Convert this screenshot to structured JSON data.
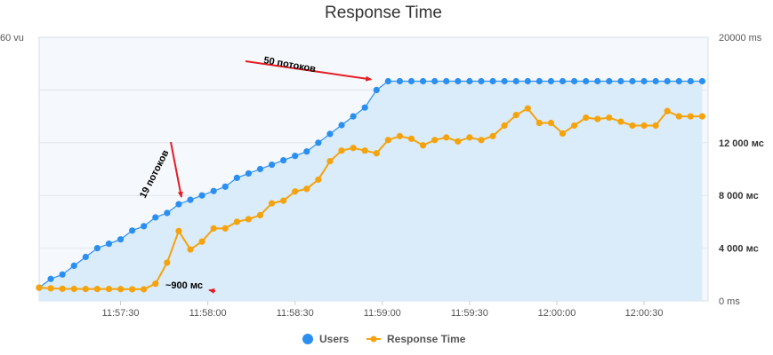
{
  "chart_data": {
    "type": "line",
    "title": "Response Time",
    "xlabel": "",
    "ylabel_left": "",
    "ylabel_right": "",
    "x_ticks": [
      "11:57:30",
      "11:58:00",
      "11:58:30",
      "11:59:00",
      "11:59:30",
      "12:00:00",
      "12:00:30"
    ],
    "x_range": [
      "11:57:02",
      "12:00:52"
    ],
    "y_left": {
      "max_label": "60 vu",
      "range": [
        0,
        60
      ]
    },
    "y_right": {
      "ticks": [
        "0 ms",
        "4 000 мс",
        "8 000 мс",
        "12 000 мс",
        "20000 ms"
      ],
      "range": [
        0,
        20000
      ]
    },
    "grid": true,
    "legend_position": "bottom-center",
    "series": [
      {
        "name": "Users",
        "type": "area",
        "axis": "left",
        "color": "#2b8ff0",
        "fill": "#daebf9",
        "x": [
          "11:57:02",
          "11:57:06",
          "11:57:10",
          "11:57:14",
          "11:57:18",
          "11:57:22",
          "11:57:26",
          "11:57:30",
          "11:57:34",
          "11:57:38",
          "11:57:42",
          "11:57:46",
          "11:57:50",
          "11:57:54",
          "11:57:58",
          "11:58:02",
          "11:58:06",
          "11:58:10",
          "11:58:14",
          "11:58:18",
          "11:58:22",
          "11:58:26",
          "11:58:30",
          "11:58:34",
          "11:58:38",
          "11:58:42",
          "11:58:46",
          "11:58:50",
          "11:58:54",
          "11:58:58",
          "11:59:02",
          "11:59:06",
          "11:59:10",
          "11:59:14",
          "11:59:18",
          "11:59:22",
          "11:59:26",
          "11:59:30",
          "11:59:34",
          "11:59:38",
          "11:59:42",
          "11:59:46",
          "11:59:50",
          "11:59:54",
          "11:59:58",
          "12:00:02",
          "12:00:06",
          "12:00:10",
          "12:00:14",
          "12:00:18",
          "12:00:22",
          "12:00:26",
          "12:00:30",
          "12:00:34",
          "12:00:38",
          "12:00:42",
          "12:00:46",
          "12:00:50"
        ],
        "values": [
          3,
          5,
          6,
          8,
          10,
          12,
          13,
          14,
          16,
          17,
          19,
          20,
          22,
          23,
          24,
          25,
          26,
          28,
          29,
          30,
          31,
          32,
          33,
          34,
          36,
          38,
          40,
          42,
          44,
          48,
          50,
          50,
          50,
          50,
          50,
          50,
          50,
          50,
          50,
          50,
          50,
          50,
          50,
          50,
          50,
          50,
          50,
          50,
          50,
          50,
          50,
          50,
          50,
          50,
          50,
          50,
          50,
          50
        ]
      },
      {
        "name": "Response Time",
        "type": "line",
        "axis": "right",
        "color": "#f5a30c",
        "x": [
          "11:57:02",
          "11:57:06",
          "11:57:10",
          "11:57:14",
          "11:57:18",
          "11:57:22",
          "11:57:26",
          "11:57:30",
          "11:57:34",
          "11:57:38",
          "11:57:42",
          "11:57:46",
          "11:57:50",
          "11:57:54",
          "11:57:58",
          "11:58:02",
          "11:58:06",
          "11:58:10",
          "11:58:14",
          "11:58:18",
          "11:58:22",
          "11:58:26",
          "11:58:30",
          "11:58:34",
          "11:58:38",
          "11:58:42",
          "11:58:46",
          "11:58:50",
          "11:58:54",
          "11:58:58",
          "11:59:02",
          "11:59:06",
          "11:59:10",
          "11:59:14",
          "11:59:18",
          "11:59:22",
          "11:59:26",
          "11:59:30",
          "11:59:34",
          "11:59:38",
          "11:59:42",
          "11:59:46",
          "11:59:50",
          "11:59:54",
          "11:59:58",
          "12:00:02",
          "12:00:06",
          "12:00:10",
          "12:00:14",
          "12:00:18",
          "12:00:22",
          "12:00:26",
          "12:00:30",
          "12:00:34",
          "12:00:38",
          "12:00:42",
          "12:00:46",
          "12:00:50"
        ],
        "values": [
          1000,
          950,
          920,
          910,
          900,
          900,
          900,
          890,
          880,
          880,
          1300,
          2900,
          5300,
          3900,
          4500,
          5500,
          5500,
          6000,
          6200,
          6500,
          7400,
          7600,
          8300,
          8500,
          9200,
          10600,
          11400,
          11600,
          11400,
          11200,
          12200,
          12500,
          12300,
          11800,
          12200,
          12400,
          12100,
          12400,
          12200,
          12500,
          13300,
          14100,
          14600,
          13500,
          13500,
          12700,
          13300,
          13900,
          13800,
          13900,
          13600,
          13300,
          13300,
          13300,
          14400,
          14000,
          14000,
          14000
        ]
      }
    ],
    "annotations": [
      {
        "text": "50 потоков",
        "target_x": "11:58:58"
      },
      {
        "text": "19 потоков",
        "target_x": "11:57:50"
      },
      {
        "text": "~900 мс",
        "target_x": "11:57:58"
      }
    ]
  },
  "legend": {
    "users_label": "Users",
    "response_label": "Response Time"
  }
}
